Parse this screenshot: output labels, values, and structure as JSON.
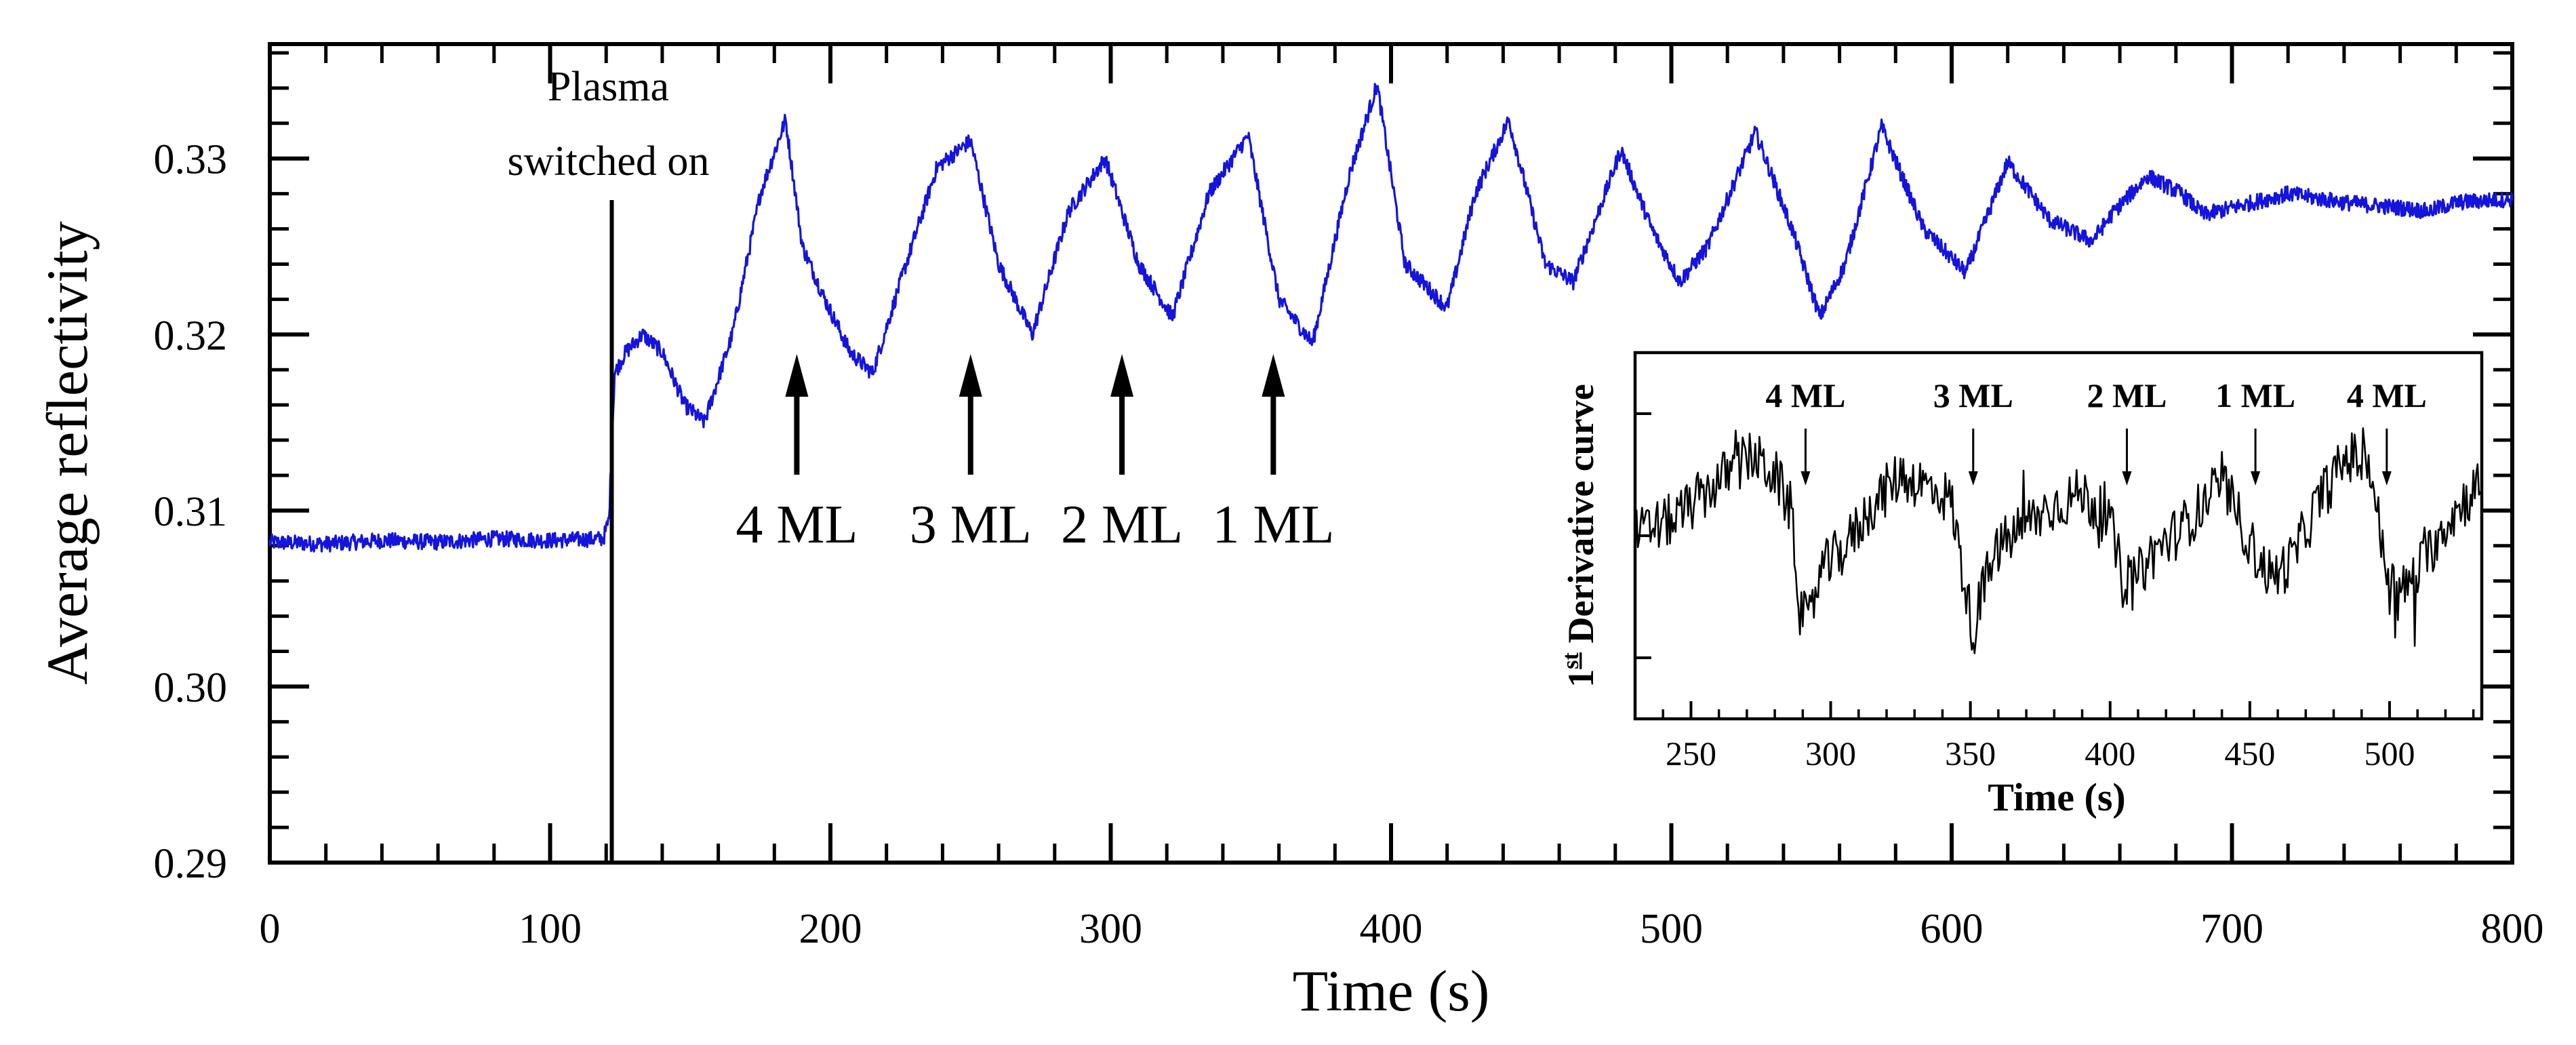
{
  "chart_data": [
    {
      "type": "line",
      "title": "",
      "xlabel": "Time (s)",
      "ylabel": "Average reflectivity",
      "xlim": [
        0,
        800
      ],
      "ylim": [
        0.29,
        0.3365
      ],
      "x_ticks": [
        0,
        100,
        200,
        300,
        400,
        500,
        600,
        700,
        800
      ],
      "y_ticks": [
        0.29,
        0.3,
        0.31,
        0.32,
        0.33
      ],
      "y_tick_labels": [
        "0.29",
        "0.30",
        "0.31",
        "0.32",
        "0.33"
      ],
      "grid": false,
      "series": [
        {
          "color": "#1414dc",
          "noise": 0.00045,
          "x": [
            0,
            20,
            40,
            60,
            80,
            100,
            119,
            121,
            123,
            127,
            133,
            140,
            148,
            155,
            165,
            175,
            184,
            190,
            198,
            207,
            215,
            225,
            238,
            250,
            260,
            272,
            285,
            298,
            310,
            322,
            335,
            349,
            360,
            372,
            385,
            395,
            405,
            420,
            430,
            442,
            455,
            465,
            482,
            493,
            503,
            513,
            530,
            543,
            553,
            562,
            575,
            590,
            605,
            620,
            635,
            650,
            658,
            670,
            682,
            690,
            700,
            720,
            740,
            760,
            770,
            780,
            800
          ],
          "y": [
            0.3082,
            0.3081,
            0.3083,
            0.3082,
            0.3084,
            0.3083,
            0.3084,
            0.3095,
            0.3178,
            0.319,
            0.32,
            0.319,
            0.316,
            0.315,
            0.32,
            0.328,
            0.3322,
            0.325,
            0.322,
            0.319,
            0.3178,
            0.323,
            0.3295,
            0.331,
            0.324,
            0.32,
            0.327,
            0.33,
            0.324,
            0.321,
            0.328,
            0.3313,
            0.322,
            0.3195,
            0.329,
            0.3342,
            0.324,
            0.3215,
            0.328,
            0.3322,
            0.324,
            0.323,
            0.3305,
            0.326,
            0.323,
            0.325,
            0.3315,
            0.326,
            0.321,
            0.324,
            0.3318,
            0.326,
            0.3235,
            0.3298,
            0.3265,
            0.3253,
            0.327,
            0.329,
            0.328,
            0.3268,
            0.3272,
            0.328,
            0.3275,
            0.3272,
            0.327,
            0.3275,
            0.3277
          ]
        }
      ],
      "annotations": [
        {
          "id": "plasma",
          "x": 122,
          "lines": [
            "Plasma",
            "switched on"
          ]
        },
        {
          "id": "a1",
          "x": 188,
          "text": "4 ML"
        },
        {
          "id": "a2",
          "x": 250,
          "text": "3 ML"
        },
        {
          "id": "a3",
          "x": 304,
          "text": "2 ML"
        },
        {
          "id": "a4",
          "x": 358,
          "text": "1 ML"
        }
      ]
    },
    {
      "type": "line",
      "title": "",
      "xlabel": "Time (s)",
      "ylabel_prefix": "1",
      "ylabel_sup": "st",
      "ylabel_rest": " Derivative curve",
      "xlim": [
        230,
        533
      ],
      "ylim": [
        -1.5,
        1.5
      ],
      "x_ticks": [
        250,
        300,
        350,
        400,
        450,
        500
      ],
      "grid": false,
      "series": [
        {
          "color": "#000000",
          "noise": 0.22,
          "x": [
            230,
            245,
            255,
            265,
            272,
            280,
            286,
            289,
            292,
            296,
            305,
            315,
            325,
            335,
            343,
            348,
            351,
            355,
            360,
            370,
            380,
            390,
            400,
            404,
            408,
            415,
            425,
            435,
            440,
            446,
            452,
            458,
            465,
            475,
            485,
            493,
            498,
            503,
            510,
            520,
            533
          ],
          "y": [
            0.0,
            0.15,
            0.35,
            0.55,
            0.65,
            0.5,
            0.2,
            -0.6,
            -0.75,
            -0.3,
            -0.1,
            0.25,
            0.5,
            0.4,
            0.3,
            -0.4,
            -0.8,
            -0.4,
            -0.1,
            0.1,
            0.25,
            0.35,
            0.1,
            -0.3,
            -0.4,
            -0.15,
            0.05,
            0.3,
            0.45,
            0.15,
            -0.15,
            -0.35,
            -0.2,
            0.3,
            0.65,
            0.6,
            -0.2,
            -0.5,
            -0.3,
            0.1,
            0.45
          ]
        }
      ],
      "annotations": [
        {
          "id": "b1",
          "x": 291,
          "text": "4 ML"
        },
        {
          "id": "b2",
          "x": 351,
          "text": "3 ML"
        },
        {
          "id": "b3",
          "x": 406,
          "text": "2 ML"
        },
        {
          "id": "b4",
          "x": 452,
          "text": "1 ML"
        },
        {
          "id": "b5",
          "x": 499,
          "text": "4 ML"
        }
      ]
    }
  ]
}
